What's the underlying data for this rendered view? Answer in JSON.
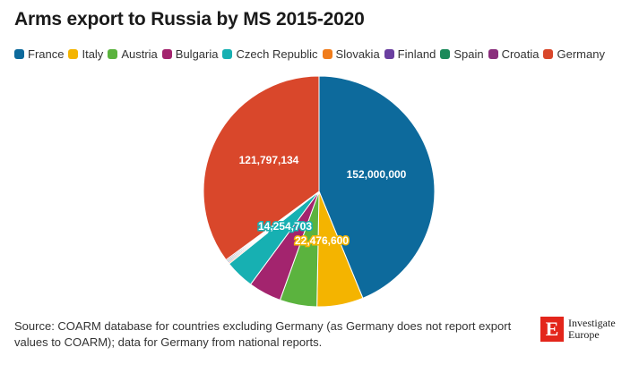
{
  "title": "Arms export to Russia by MS 2015-2020",
  "source": "Source: COARM database for countries excluding Germany (as Germany does not report export values to COARM); data for Germany from national reports.",
  "logo": {
    "line1": "Investigate",
    "line2": "Europe",
    "mark": "E"
  },
  "chart_data": {
    "type": "pie",
    "title": "Arms export to Russia by MS 2015-2020",
    "legend_position": "top",
    "start_angle": "12 o'clock, clockwise",
    "slices": [
      {
        "name": "France",
        "value": 152000000,
        "label": "152,000,000",
        "color": "#0d6a9c"
      },
      {
        "name": "Italy",
        "value": 22476600,
        "label": "22,476,600",
        "color": "#f4b400"
      },
      {
        "name": "Austria",
        "value": 18000000,
        "label": "",
        "color": "#5bb33e"
      },
      {
        "name": "Bulgaria",
        "value": 16000000,
        "label": "",
        "color": "#a3246e"
      },
      {
        "name": "Czech Republic",
        "value": 14254703,
        "label": "14,254,703",
        "color": "#17b0b2"
      },
      {
        "name": "Slovakia",
        "value": 600000,
        "label": "",
        "color": "#f07c1b"
      },
      {
        "name": "Finland",
        "value": 600000,
        "label": "",
        "color": "#6a3fa0"
      },
      {
        "name": "Spain",
        "value": 600000,
        "label": "",
        "color": "#1b8a5a"
      },
      {
        "name": "Croatia",
        "value": 600000,
        "label": "",
        "color": "#8a2e7c"
      },
      {
        "name": "Germany",
        "value": 121797134,
        "label": "121,797,134",
        "color": "#d9472b"
      }
    ]
  }
}
